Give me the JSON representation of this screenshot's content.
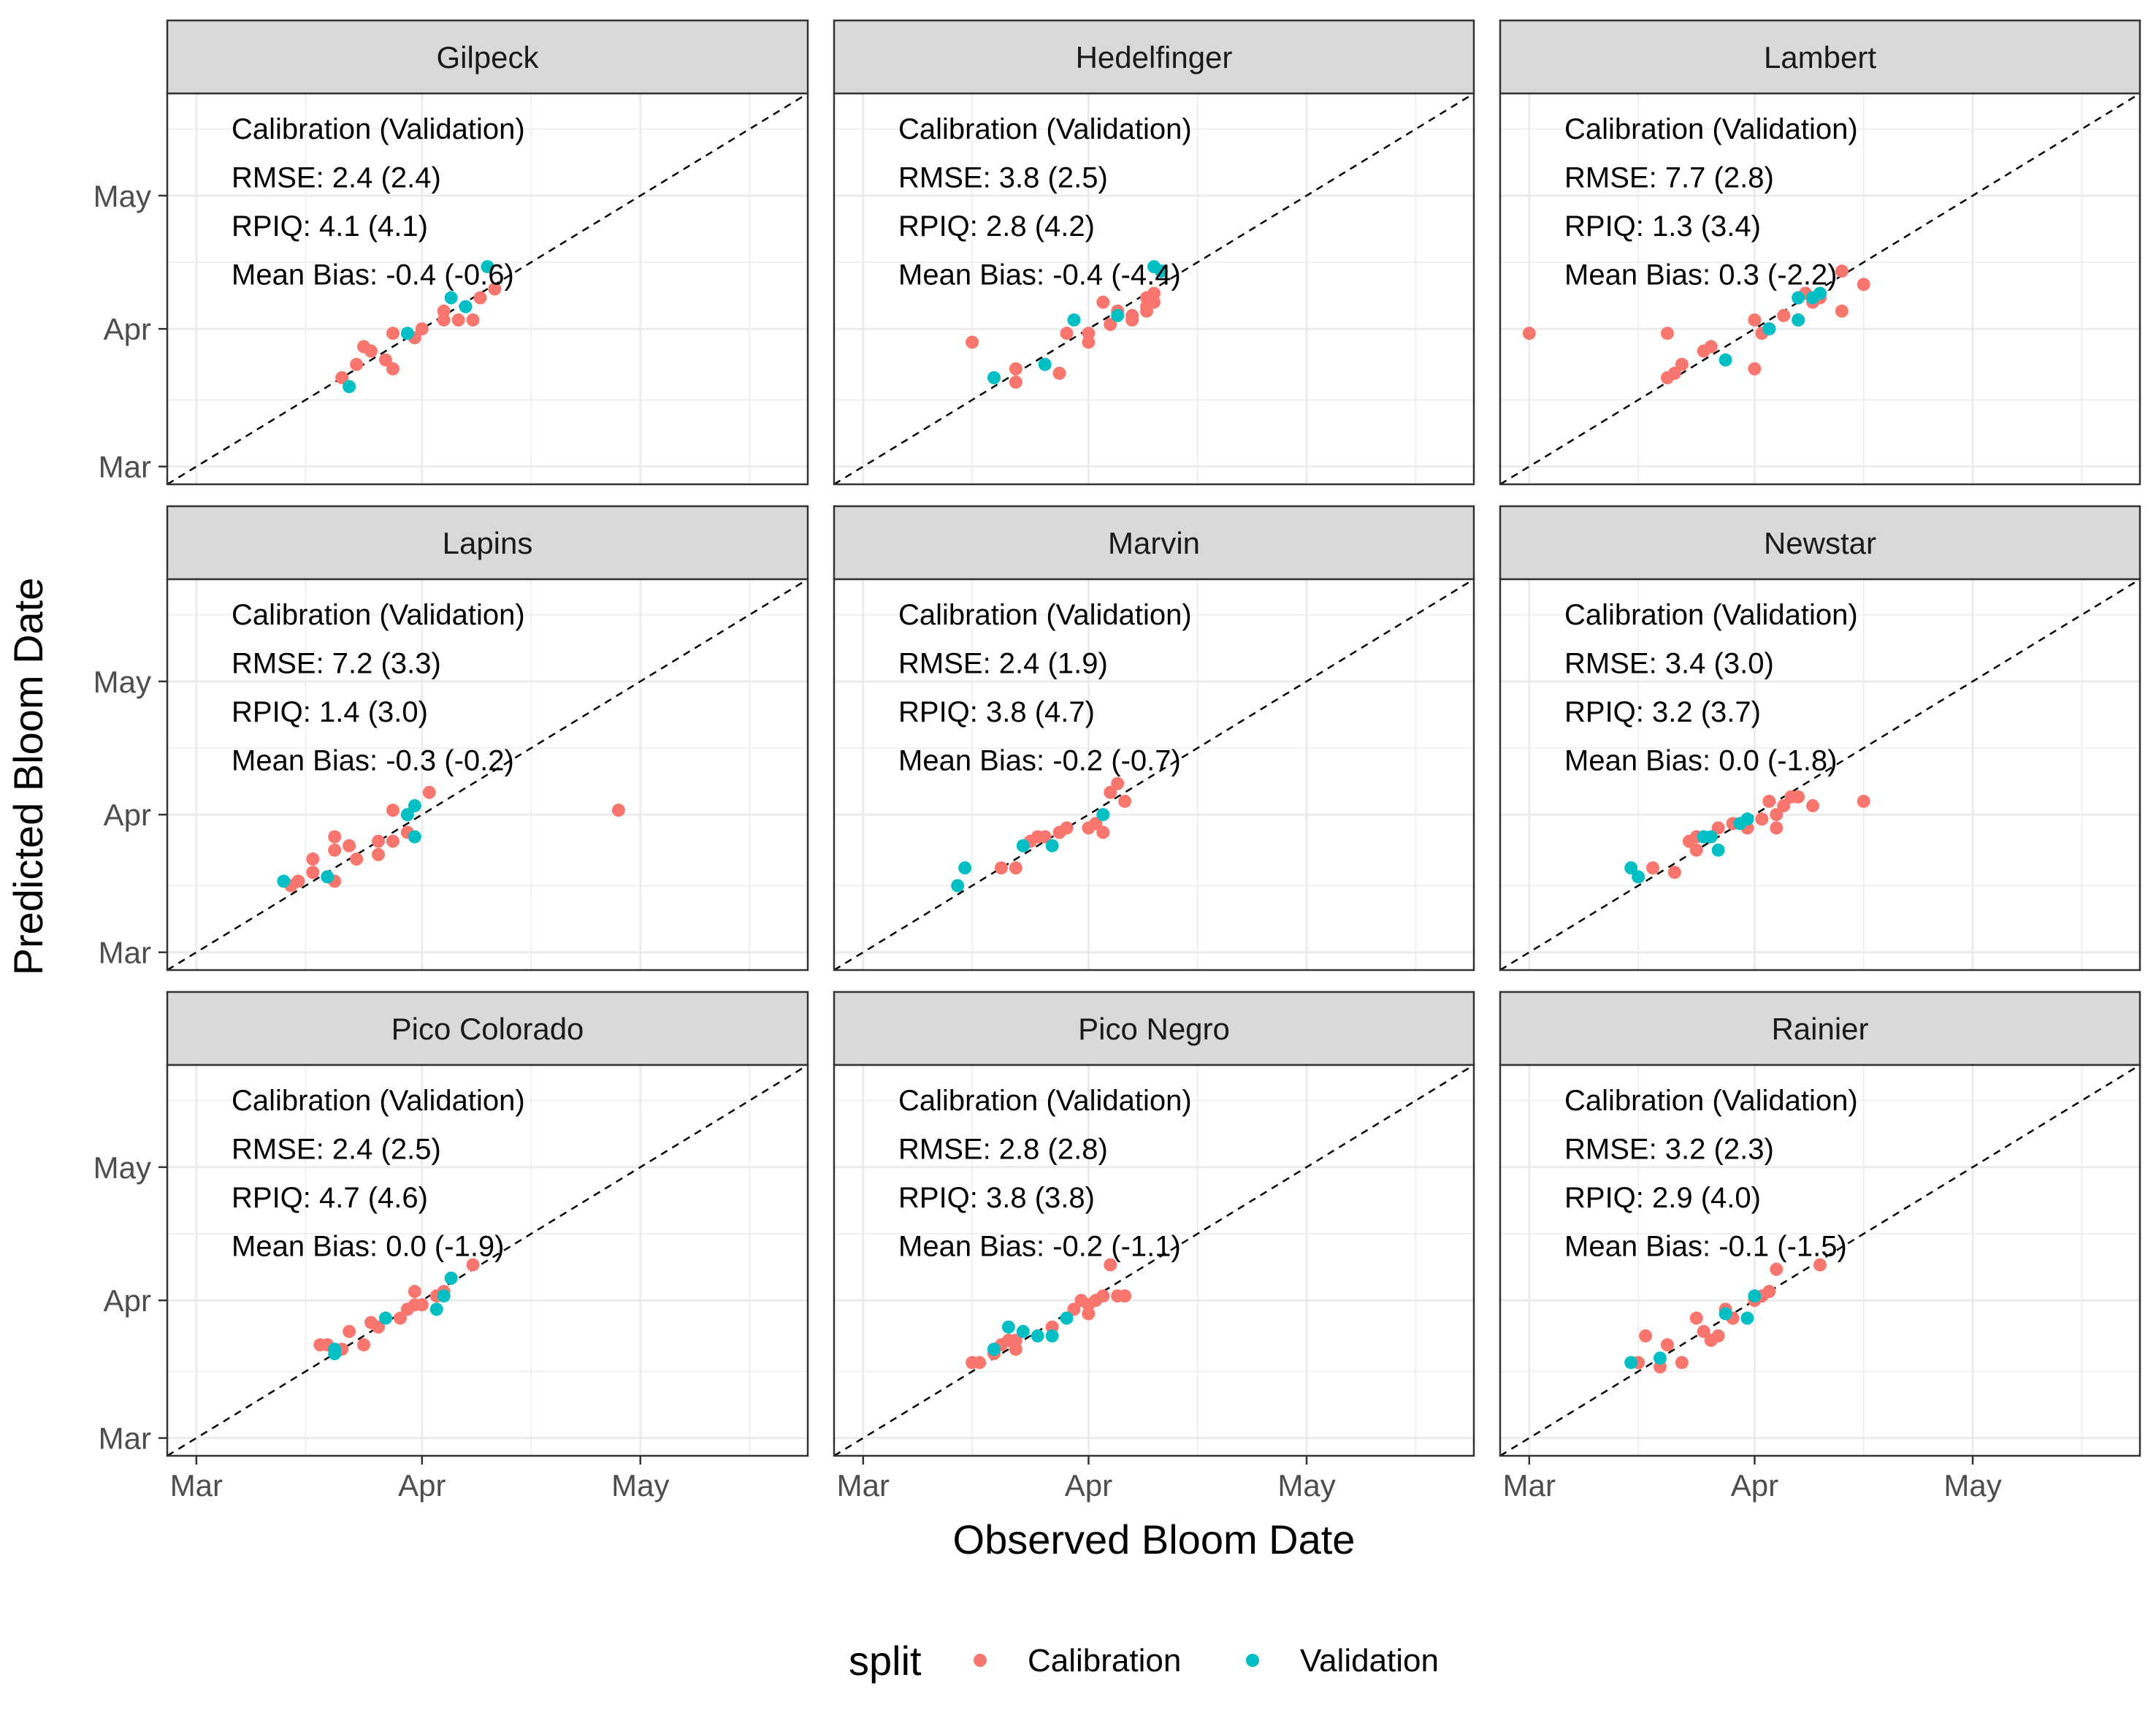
{
  "chart_data": {
    "type": "scatter",
    "xlabel": "Observed Bloom Date",
    "ylabel": "Predicted Bloom Date",
    "x_ticks": [
      "Mar",
      "Apr",
      "May"
    ],
    "y_ticks": [
      "Mar",
      "Apr",
      "May"
    ],
    "xlim": [
      "2000-02-26",
      "2000-05-24"
    ],
    "ylim": [
      "2000-02-26",
      "2000-05-24"
    ],
    "grid": true,
    "reference_line": "y = x (dashed)",
    "legend": {
      "title": "split",
      "position": "bottom",
      "entries": [
        {
          "name": "Calibration",
          "color": "#F8766D"
        },
        {
          "name": "Validation",
          "color": "#00BFC4"
        }
      ]
    },
    "panels": [
      {
        "name": "Gilpeck",
        "annotation": [
          "Calibration (Validation)",
          "RMSE: 2.4 (2.4)",
          "RPIQ: 4.1 (4.1)",
          "Mean Bias: -0.4 (-0.6)"
        ],
        "calibration": [
          [
            "2000-03-21",
            "2000-03-21"
          ],
          [
            "2000-03-23",
            "2000-03-24"
          ],
          [
            "2000-03-24",
            "2000-03-28"
          ],
          [
            "2000-03-25",
            "2000-03-27"
          ],
          [
            "2000-03-27",
            "2000-03-25"
          ],
          [
            "2000-03-28",
            "2000-03-23"
          ],
          [
            "2000-03-28",
            "2000-03-31"
          ],
          [
            "2000-03-31",
            "2000-03-30"
          ],
          [
            "2000-04-01",
            "2000-04-01"
          ],
          [
            "2000-04-04",
            "2000-04-03"
          ],
          [
            "2000-04-04",
            "2000-04-05"
          ],
          [
            "2000-04-06",
            "2000-04-03"
          ],
          [
            "2000-04-08",
            "2000-04-03"
          ],
          [
            "2000-04-09",
            "2000-04-08"
          ],
          [
            "2000-04-11",
            "2000-04-10"
          ]
        ],
        "validation": [
          [
            "2000-03-22",
            "2000-03-19"
          ],
          [
            "2000-03-30",
            "2000-03-31"
          ],
          [
            "2000-04-05",
            "2000-04-08"
          ],
          [
            "2000-04-07",
            "2000-04-06"
          ],
          [
            "2000-04-10",
            "2000-04-15"
          ]
        ]
      },
      {
        "name": "Hedelfinger",
        "annotation": [
          "Calibration (Validation)",
          "RMSE: 3.8 (2.5)",
          "RPIQ: 2.8 (4.2)",
          "Mean Bias: -0.4 (-4.4)"
        ],
        "calibration": [
          [
            "2000-03-16",
            "2000-03-29"
          ],
          [
            "2000-03-22",
            "2000-03-20"
          ],
          [
            "2000-03-22",
            "2000-03-23"
          ],
          [
            "2000-03-28",
            "2000-03-22"
          ],
          [
            "2000-03-29",
            "2000-03-31"
          ],
          [
            "2000-04-01",
            "2000-03-29"
          ],
          [
            "2000-04-01",
            "2000-03-31"
          ],
          [
            "2000-04-03",
            "2000-04-07"
          ],
          [
            "2000-04-04",
            "2000-04-02"
          ],
          [
            "2000-04-05",
            "2000-04-05"
          ],
          [
            "2000-04-07",
            "2000-04-04"
          ],
          [
            "2000-04-07",
            "2000-04-03"
          ],
          [
            "2000-04-09",
            "2000-04-05"
          ],
          [
            "2000-04-09",
            "2000-04-06"
          ],
          [
            "2000-04-09",
            "2000-04-08"
          ],
          [
            "2000-04-10",
            "2000-04-09"
          ],
          [
            "2000-04-10",
            "2000-04-07"
          ]
        ],
        "validation": [
          [
            "2000-03-19",
            "2000-03-21"
          ],
          [
            "2000-03-26",
            "2000-03-24"
          ],
          [
            "2000-03-30",
            "2000-04-03"
          ],
          [
            "2000-04-05",
            "2000-04-04"
          ],
          [
            "2000-04-10",
            "2000-04-15"
          ],
          [
            "2000-04-11",
            "2000-04-14"
          ]
        ]
      },
      {
        "name": "Lambert",
        "annotation": [
          "Calibration (Validation)",
          "RMSE: 7.7 (2.8)",
          "RPIQ: 1.3 (3.4)",
          "Mean Bias:  0.3 (-2.2)"
        ],
        "calibration": [
          [
            "2000-03-01",
            "2000-03-31"
          ],
          [
            "2000-03-20",
            "2000-03-31"
          ],
          [
            "2000-03-20",
            "2000-03-21"
          ],
          [
            "2000-03-21",
            "2000-03-22"
          ],
          [
            "2000-03-22",
            "2000-03-24"
          ],
          [
            "2000-03-25",
            "2000-03-27"
          ],
          [
            "2000-03-26",
            "2000-03-28"
          ],
          [
            "2000-04-01",
            "2000-03-23"
          ],
          [
            "2000-04-01",
            "2000-04-03"
          ],
          [
            "2000-04-02",
            "2000-03-31"
          ],
          [
            "2000-04-03",
            "2000-04-01"
          ],
          [
            "2000-04-05",
            "2000-04-04"
          ],
          [
            "2000-04-07",
            "2000-04-03"
          ],
          [
            "2000-04-08",
            "2000-04-09"
          ],
          [
            "2000-04-09",
            "2000-04-07"
          ],
          [
            "2000-04-10",
            "2000-04-08"
          ],
          [
            "2000-04-13",
            "2000-04-05"
          ],
          [
            "2000-04-13",
            "2000-04-14"
          ],
          [
            "2000-04-16",
            "2000-04-11"
          ]
        ],
        "validation": [
          [
            "2000-03-28",
            "2000-03-25"
          ],
          [
            "2000-04-03",
            "2000-04-01"
          ],
          [
            "2000-04-07",
            "2000-04-03"
          ],
          [
            "2000-04-07",
            "2000-04-08"
          ],
          [
            "2000-04-09",
            "2000-04-08"
          ],
          [
            "2000-04-10",
            "2000-04-09"
          ]
        ]
      },
      {
        "name": "Lapins",
        "annotation": [
          "Calibration (Validation)",
          "RMSE: 7.2 (3.3)",
          "RPIQ: 1.4 (3.0)",
          "Mean Bias: -0.3 (-0.2)"
        ],
        "calibration": [
          [
            "2000-03-14",
            "2000-03-16"
          ],
          [
            "2000-03-15",
            "2000-03-17"
          ],
          [
            "2000-03-17",
            "2000-03-19"
          ],
          [
            "2000-03-17",
            "2000-03-22"
          ],
          [
            "2000-03-20",
            "2000-03-17"
          ],
          [
            "2000-03-20",
            "2000-03-24"
          ],
          [
            "2000-03-20",
            "2000-03-27"
          ],
          [
            "2000-03-22",
            "2000-03-25"
          ],
          [
            "2000-03-23",
            "2000-03-22"
          ],
          [
            "2000-03-26",
            "2000-03-23"
          ],
          [
            "2000-03-26",
            "2000-03-26"
          ],
          [
            "2000-03-28",
            "2000-03-26"
          ],
          [
            "2000-03-28",
            "2000-04-02"
          ],
          [
            "2000-03-30",
            "2000-03-28"
          ],
          [
            "2000-04-02",
            "2000-04-06"
          ],
          [
            "2000-04-28",
            "2000-04-02"
          ]
        ],
        "validation": [
          [
            "2000-03-13",
            "2000-03-17"
          ],
          [
            "2000-03-19",
            "2000-03-18"
          ],
          [
            "2000-03-30",
            "2000-04-01"
          ],
          [
            "2000-03-31",
            "2000-03-27"
          ],
          [
            "2000-03-31",
            "2000-04-03"
          ]
        ]
      },
      {
        "name": "Marvin",
        "annotation": [
          "Calibration (Validation)",
          "RMSE: 2.4 (1.9)",
          "RPIQ: 3.8 (4.7)",
          "Mean Bias: -0.2 (-0.7)"
        ],
        "calibration": [
          [
            "2000-03-20",
            "2000-03-20"
          ],
          [
            "2000-03-22",
            "2000-03-20"
          ],
          [
            "2000-03-24",
            "2000-03-26"
          ],
          [
            "2000-03-25",
            "2000-03-27"
          ],
          [
            "2000-03-26",
            "2000-03-27"
          ],
          [
            "2000-03-28",
            "2000-03-28"
          ],
          [
            "2000-03-29",
            "2000-03-29"
          ],
          [
            "2000-04-01",
            "2000-03-29"
          ],
          [
            "2000-04-02",
            "2000-03-30"
          ],
          [
            "2000-04-03",
            "2000-03-28"
          ],
          [
            "2000-04-04",
            "2000-04-06"
          ],
          [
            "2000-04-05",
            "2000-04-08"
          ],
          [
            "2000-04-06",
            "2000-04-04"
          ]
        ],
        "validation": [
          [
            "2000-03-14",
            "2000-03-16"
          ],
          [
            "2000-03-15",
            "2000-03-20"
          ],
          [
            "2000-03-23",
            "2000-03-25"
          ],
          [
            "2000-03-27",
            "2000-03-25"
          ],
          [
            "2000-04-03",
            "2000-04-01"
          ]
        ]
      },
      {
        "name": "Newstar",
        "annotation": [
          "Calibration (Validation)",
          "RMSE: 3.4 (3.0)",
          "RPIQ: 3.2 (3.7)",
          "Mean Bias:  0.0 (-1.8)"
        ],
        "calibration": [
          [
            "2000-03-18",
            "2000-03-20"
          ],
          [
            "2000-03-21",
            "2000-03-19"
          ],
          [
            "2000-03-23",
            "2000-03-26"
          ],
          [
            "2000-03-24",
            "2000-03-27"
          ],
          [
            "2000-03-24",
            "2000-03-24"
          ],
          [
            "2000-03-27",
            "2000-03-29"
          ],
          [
            "2000-03-29",
            "2000-03-30"
          ],
          [
            "2000-03-31",
            "2000-03-29"
          ],
          [
            "2000-04-02",
            "2000-03-31"
          ],
          [
            "2000-04-03",
            "2000-04-04"
          ],
          [
            "2000-04-04",
            "2000-04-01"
          ],
          [
            "2000-04-04",
            "2000-03-29"
          ],
          [
            "2000-04-05",
            "2000-04-03"
          ],
          [
            "2000-04-06",
            "2000-04-05"
          ],
          [
            "2000-04-07",
            "2000-04-05"
          ],
          [
            "2000-04-09",
            "2000-04-03"
          ],
          [
            "2000-04-16",
            "2000-04-04"
          ]
        ],
        "validation": [
          [
            "2000-03-15",
            "2000-03-20"
          ],
          [
            "2000-03-16",
            "2000-03-18"
          ],
          [
            "2000-03-25",
            "2000-03-27"
          ],
          [
            "2000-03-26",
            "2000-03-27"
          ],
          [
            "2000-03-27",
            "2000-03-24"
          ],
          [
            "2000-03-30",
            "2000-03-30"
          ],
          [
            "2000-03-31",
            "2000-03-31"
          ]
        ]
      },
      {
        "name": "Pico Colorado",
        "annotation": [
          "Calibration (Validation)",
          "RMSE: 2.4 (2.5)",
          "RPIQ: 4.7 (4.6)",
          "Mean Bias:  0.0 (-1.9)"
        ],
        "calibration": [
          [
            "2000-03-18",
            "2000-03-22"
          ],
          [
            "2000-03-19",
            "2000-03-22"
          ],
          [
            "2000-03-21",
            "2000-03-21"
          ],
          [
            "2000-03-22",
            "2000-03-25"
          ],
          [
            "2000-03-24",
            "2000-03-22"
          ],
          [
            "2000-03-25",
            "2000-03-27"
          ],
          [
            "2000-03-26",
            "2000-03-26"
          ],
          [
            "2000-03-29",
            "2000-03-28"
          ],
          [
            "2000-03-30",
            "2000-03-30"
          ],
          [
            "2000-03-31",
            "2000-03-31"
          ],
          [
            "2000-03-31",
            "2000-04-03"
          ],
          [
            "2000-04-01",
            "2000-03-31"
          ],
          [
            "2000-04-03",
            "2000-04-02"
          ],
          [
            "2000-04-04",
            "2000-04-03"
          ],
          [
            "2000-04-05",
            "2000-04-06"
          ],
          [
            "2000-04-08",
            "2000-04-09"
          ]
        ],
        "validation": [
          [
            "2000-03-20",
            "2000-03-21"
          ],
          [
            "2000-03-20",
            "2000-03-20"
          ],
          [
            "2000-03-27",
            "2000-03-28"
          ],
          [
            "2000-04-03",
            "2000-03-30"
          ],
          [
            "2000-04-04",
            "2000-04-02"
          ],
          [
            "2000-04-05",
            "2000-04-06"
          ]
        ]
      },
      {
        "name": "Pico Negro",
        "annotation": [
          "Calibration (Validation)",
          "RMSE: 2.8 (2.8)",
          "RPIQ: 3.8 (3.8)",
          "Mean Bias: -0.2 (-1.1)"
        ],
        "calibration": [
          [
            "2000-03-16",
            "2000-03-18"
          ],
          [
            "2000-03-17",
            "2000-03-18"
          ],
          [
            "2000-03-19",
            "2000-03-20"
          ],
          [
            "2000-03-20",
            "2000-03-22"
          ],
          [
            "2000-03-21",
            "2000-03-23"
          ],
          [
            "2000-03-22",
            "2000-03-23"
          ],
          [
            "2000-03-22",
            "2000-03-21"
          ],
          [
            "2000-03-27",
            "2000-03-26"
          ],
          [
            "2000-03-30",
            "2000-03-30"
          ],
          [
            "2000-03-31",
            "2000-04-01"
          ],
          [
            "2000-04-01",
            "2000-03-31"
          ],
          [
            "2000-04-01",
            "2000-03-29"
          ],
          [
            "2000-04-02",
            "2000-04-01"
          ],
          [
            "2000-04-03",
            "2000-04-02"
          ],
          [
            "2000-04-04",
            "2000-04-09"
          ],
          [
            "2000-04-05",
            "2000-04-02"
          ],
          [
            "2000-04-06",
            "2000-04-02"
          ]
        ],
        "validation": [
          [
            "2000-03-19",
            "2000-03-21"
          ],
          [
            "2000-03-21",
            "2000-03-26"
          ],
          [
            "2000-03-23",
            "2000-03-25"
          ],
          [
            "2000-03-25",
            "2000-03-24"
          ],
          [
            "2000-03-27",
            "2000-03-24"
          ],
          [
            "2000-03-29",
            "2000-03-28"
          ]
        ]
      },
      {
        "name": "Rainier",
        "annotation": [
          "Calibration (Validation)",
          "RMSE: 3.2 (2.3)",
          "RPIQ: 2.9 (4.0)",
          "Mean Bias: -0.1 (-1.5)"
        ],
        "calibration": [
          [
            "2000-03-16",
            "2000-03-18"
          ],
          [
            "2000-03-17",
            "2000-03-24"
          ],
          [
            "2000-03-19",
            "2000-03-17"
          ],
          [
            "2000-03-20",
            "2000-03-22"
          ],
          [
            "2000-03-22",
            "2000-03-18"
          ],
          [
            "2000-03-24",
            "2000-03-28"
          ],
          [
            "2000-03-25",
            "2000-03-25"
          ],
          [
            "2000-03-26",
            "2000-03-23"
          ],
          [
            "2000-03-27",
            "2000-03-24"
          ],
          [
            "2000-03-28",
            "2000-03-30"
          ],
          [
            "2000-03-29",
            "2000-03-28"
          ],
          [
            "2000-04-01",
            "2000-04-01"
          ],
          [
            "2000-04-02",
            "2000-04-02"
          ],
          [
            "2000-04-03",
            "2000-04-03"
          ],
          [
            "2000-04-04",
            "2000-04-08"
          ],
          [
            "2000-04-10",
            "2000-04-09"
          ]
        ],
        "validation": [
          [
            "2000-03-15",
            "2000-03-18"
          ],
          [
            "2000-03-19",
            "2000-03-19"
          ],
          [
            "2000-03-28",
            "2000-03-29"
          ],
          [
            "2000-03-31",
            "2000-03-28"
          ],
          [
            "2000-04-01",
            "2000-04-02"
          ]
        ]
      }
    ]
  }
}
